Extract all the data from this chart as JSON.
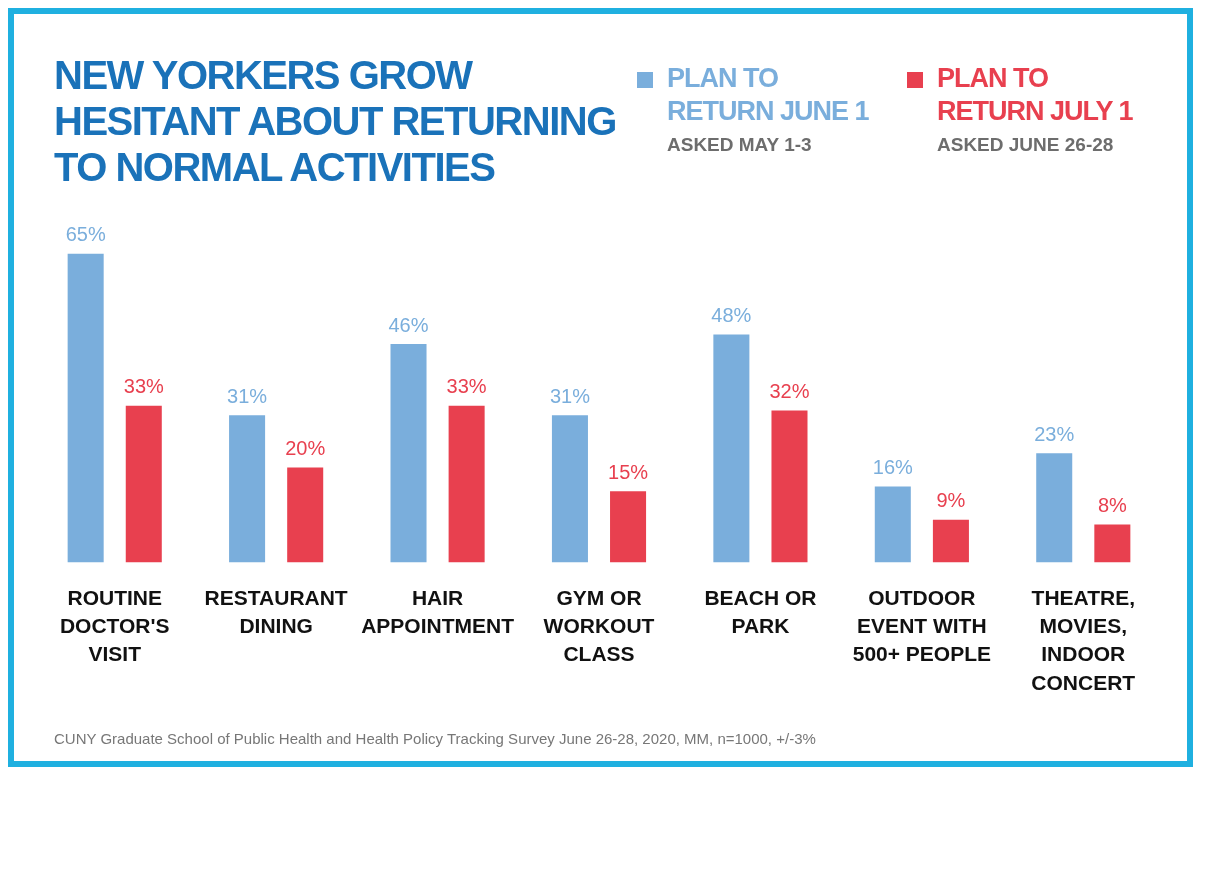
{
  "chart_data": {
    "type": "bar",
    "title": "NEW YORKERS GROW HESITANT ABOUT RETURNING TO NORMAL ACTIVITIES",
    "categories": [
      "ROUTINE DOCTOR'S VISIT",
      "RESTAURANT DINING",
      "HAIR APPOINTMENT",
      "GYM OR WORKOUT CLASS",
      "BEACH OR PARK",
      "OUTDOOR EVENT WITH 500+ PEOPLE",
      "THEATRE, MOVIES, INDOOR CONCERT"
    ],
    "series": [
      {
        "name": "PLAN TO RETURN JUNE 1",
        "color": "#7aaedc",
        "values": [
          65,
          31,
          46,
          31,
          48,
          16,
          23
        ],
        "value_labels": [
          "65%",
          "31%",
          "46%",
          "31%",
          "48%",
          "16%",
          "23%"
        ]
      },
      {
        "name": "PLAN TO RETURN JULY 1",
        "color": "#e8404f",
        "values": [
          33,
          20,
          33,
          15,
          32,
          9,
          8
        ],
        "value_labels": [
          "33%",
          "20%",
          "33%",
          "15%",
          "32%",
          "9%",
          "8%"
        ]
      }
    ],
    "annotations": [
      "ASKED MAY 1-3",
      "ASKED JUNE 26-28",
      "CUNY Graduate School of Public Health and Health Policy Tracking Survey June 26-28, 2020, MM, n=1000, +/-3%"
    ],
    "legend": "top right",
    "grid": false
  }
}
